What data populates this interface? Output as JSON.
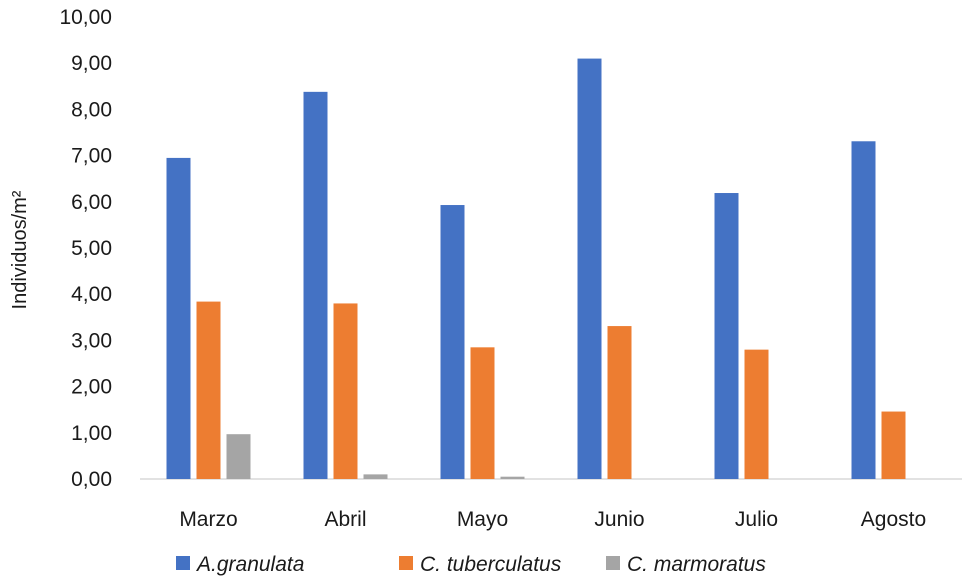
{
  "chart_data": {
    "type": "bar",
    "title": "",
    "xlabel": "",
    "ylabel": "Individuos/m²",
    "ylim": [
      0,
      10
    ],
    "yticks": [
      "0,00",
      "1,00",
      "2,00",
      "3,00",
      "4,00",
      "5,00",
      "6,00",
      "7,00",
      "8,00",
      "9,00",
      "10,00"
    ],
    "grid": false,
    "legend_position": "bottom",
    "categories": [
      "Marzo",
      "Abril",
      "Mayo",
      "Junio",
      "Julio",
      "Agosto"
    ],
    "series": [
      {
        "name": "A.granulata",
        "color": "#4472C4",
        "values": [
          6.95,
          8.38,
          5.93,
          9.1,
          6.19,
          7.31
        ]
      },
      {
        "name": "C. tuberculatus",
        "color": "#ED7D31",
        "values": [
          3.84,
          3.8,
          2.85,
          3.31,
          2.8,
          1.46
        ]
      },
      {
        "name": "C. marmoratus",
        "color": "#A5A5A5",
        "values": [
          0.97,
          0.1,
          0.05,
          0,
          0,
          0
        ]
      }
    ]
  }
}
